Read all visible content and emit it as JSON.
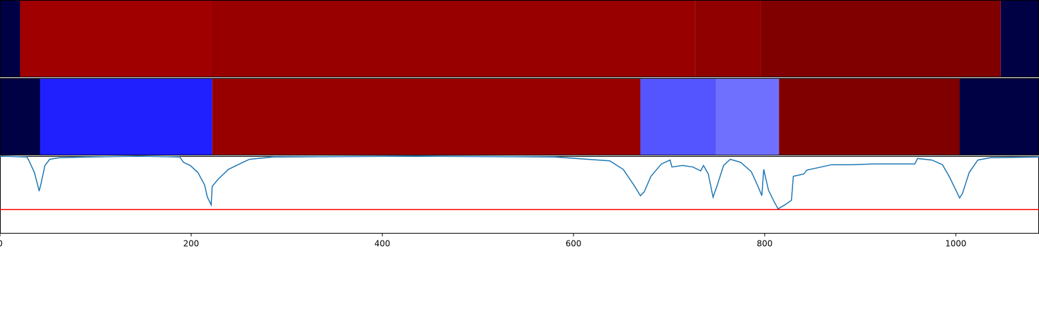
{
  "chart_data": {
    "type": "line",
    "heatmap_rows": [
      {
        "segments": [
          {
            "x0": 0,
            "x1": 21,
            "color": "#000045"
          },
          {
            "x0": 21,
            "x1": 221,
            "color": "#a00000"
          },
          {
            "x0": 221,
            "x1": 727,
            "color": "#980000"
          },
          {
            "x0": 727,
            "x1": 796,
            "color": "#900000"
          },
          {
            "x0": 796,
            "x1": 1047,
            "color": "#800000"
          },
          {
            "x0": 1047,
            "x1": 1087,
            "color": "#000045"
          }
        ]
      },
      {
        "segments": [
          {
            "x0": 0,
            "x1": 42,
            "color": "#000045"
          },
          {
            "x0": 42,
            "x1": 222,
            "color": "#2020ff"
          },
          {
            "x0": 222,
            "x1": 670,
            "color": "#980000"
          },
          {
            "x0": 670,
            "x1": 749,
            "color": "#5555ff"
          },
          {
            "x0": 749,
            "x1": 815,
            "color": "#7070ff"
          },
          {
            "x0": 815,
            "x1": 1004,
            "color": "#800000"
          },
          {
            "x0": 1004,
            "x1": 1087,
            "color": "#000045"
          }
        ]
      }
    ],
    "x": [
      0,
      28,
      30,
      36,
      41,
      43,
      47,
      52,
      62,
      94,
      145,
      188,
      192,
      199,
      207,
      214,
      217,
      221,
      222,
      228,
      239,
      254,
      261,
      286,
      435,
      580,
      638,
      652,
      663,
      670,
      674,
      681,
      692,
      701,
      703,
      714,
      725,
      733,
      736,
      741,
      746,
      750,
      757,
      764,
      775,
      786,
      793,
      797,
      799,
      804,
      810,
      814,
      821,
      828,
      830,
      841,
      844,
      859,
      870,
      891,
      913,
      942,
      957,
      960,
      975,
      986,
      993,
      1004,
      1007,
      1014,
      1023,
      1036,
      1087
    ],
    "values": [
      1.0,
      0.99,
      0.95,
      0.79,
      0.55,
      0.65,
      0.88,
      0.96,
      0.98,
      0.99,
      1.0,
      0.99,
      0.92,
      0.88,
      0.79,
      0.63,
      0.47,
      0.37,
      0.61,
      0.7,
      0.83,
      0.92,
      0.96,
      0.99,
      1.0,
      0.99,
      0.94,
      0.83,
      0.63,
      0.49,
      0.54,
      0.74,
      0.9,
      0.95,
      0.86,
      0.88,
      0.86,
      0.81,
      0.88,
      0.77,
      0.47,
      0.61,
      0.88,
      0.96,
      0.92,
      0.8,
      0.61,
      0.49,
      0.83,
      0.56,
      0.41,
      0.32,
      0.37,
      0.43,
      0.74,
      0.77,
      0.82,
      0.86,
      0.89,
      0.89,
      0.9,
      0.9,
      0.9,
      0.97,
      0.95,
      0.89,
      0.74,
      0.46,
      0.52,
      0.79,
      0.95,
      0.98,
      0.99
    ],
    "color": "#1f77b4",
    "threshold": 0.31,
    "threshold_color": "#ff0000",
    "xlim": [
      0,
      1087
    ],
    "ylim": [
      0,
      1
    ],
    "xticks": [
      0,
      200,
      400,
      600,
      800,
      1000
    ]
  }
}
